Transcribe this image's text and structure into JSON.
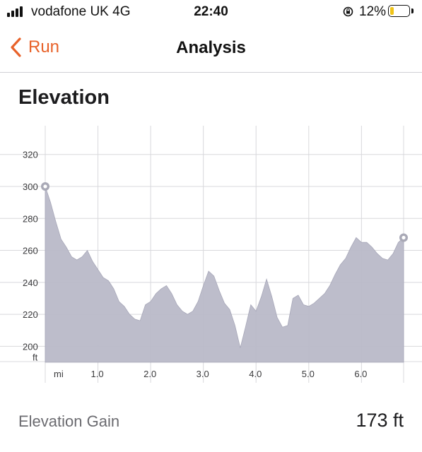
{
  "status_bar": {
    "carrier": "vodafone UK  4G",
    "time": "22:40",
    "battery_percent": "12%",
    "signal_bars": 4,
    "battery_level": 0.12
  },
  "nav": {
    "back_label": "Run",
    "title": "Analysis"
  },
  "section": {
    "title": "Elevation"
  },
  "chart_data": {
    "type": "area",
    "title": "",
    "xlabel": "mi",
    "ylabel": "ft",
    "x_unit": "mi",
    "y_unit": "ft",
    "xlim": [
      0,
      6.8
    ],
    "ylim": [
      190,
      338
    ],
    "y_ticks": [
      200,
      220,
      240,
      260,
      280,
      300,
      320
    ],
    "x_ticks": [
      1.0,
      2.0,
      3.0,
      4.0,
      5.0,
      6.0
    ],
    "x_tick_labels": [
      "1.0",
      "2.0",
      "3.0",
      "4.0",
      "5.0",
      "6.0"
    ],
    "grid": true,
    "fill_color": "#b9b9c8",
    "marker_color": "#a9a9b6",
    "markers": [
      [
        0.0,
        300
      ],
      [
        6.8,
        268
      ]
    ],
    "series": [
      {
        "x": [
          0.0,
          0.1,
          0.2,
          0.3,
          0.4,
          0.5,
          0.6,
          0.7,
          0.8,
          0.9,
          1.0,
          1.1,
          1.2,
          1.3,
          1.4,
          1.5,
          1.6,
          1.7,
          1.8,
          1.9,
          2.0,
          2.1,
          2.2,
          2.3,
          2.4,
          2.5,
          2.6,
          2.7,
          2.8,
          2.9,
          3.0,
          3.1,
          3.2,
          3.3,
          3.4,
          3.5,
          3.6,
          3.7,
          3.8,
          3.9,
          4.0,
          4.1,
          4.2,
          4.3,
          4.4,
          4.5,
          4.6,
          4.7,
          4.8,
          4.9,
          5.0,
          5.1,
          5.2,
          5.3,
          5.4,
          5.5,
          5.6,
          5.7,
          5.8,
          5.9,
          6.0,
          6.1,
          6.2,
          6.3,
          6.4,
          6.5,
          6.6,
          6.7,
          6.8
        ],
        "y": [
          300,
          290,
          278,
          267,
          262,
          256,
          254,
          256,
          260,
          253,
          248,
          243,
          241,
          236,
          228,
          225,
          220,
          217,
          216,
          226,
          228,
          233,
          236,
          238,
          233,
          226,
          222,
          220,
          222,
          228,
          238,
          247,
          244,
          235,
          227,
          223,
          213,
          199,
          212,
          226,
          222,
          231,
          242,
          231,
          218,
          212,
          213,
          230,
          232,
          226,
          225,
          227,
          230,
          233,
          238,
          245,
          251,
          255,
          262,
          268,
          265,
          265,
          262,
          258,
          255,
          254,
          258,
          265,
          268
        ]
      }
    ]
  }
}
